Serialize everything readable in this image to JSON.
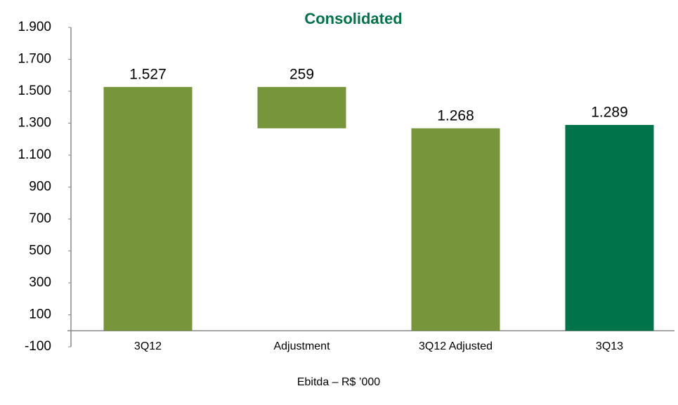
{
  "chart_data": {
    "type": "waterfall",
    "title": "Consolidated",
    "x_label": "Ebitda – R$ ’000",
    "categories": [
      "3Q12",
      "Adjustment",
      "3Q12 Adjusted",
      "3Q13"
    ],
    "values": [
      1527,
      259,
      1268,
      1289
    ],
    "value_labels": [
      "1.527",
      "259",
      "1.268",
      "1.289"
    ],
    "measure": [
      "absolute",
      "decrease",
      "absolute",
      "absolute"
    ],
    "colors": [
      "#77963b",
      "#77963b",
      "#77963b",
      "#00734a"
    ],
    "ylim": [
      -100,
      1900
    ],
    "yticks": [
      -100,
      100,
      300,
      500,
      700,
      900,
      {
        "value": 1100,
        "label": "1.100"
      },
      {
        "value": 1300,
        "label": "1.300"
      },
      {
        "value": 1500,
        "label": "1.500"
      },
      {
        "value": 1700,
        "label": "1.700"
      },
      {
        "value": 1900,
        "label": "1.900"
      }
    ],
    "grid": false
  }
}
